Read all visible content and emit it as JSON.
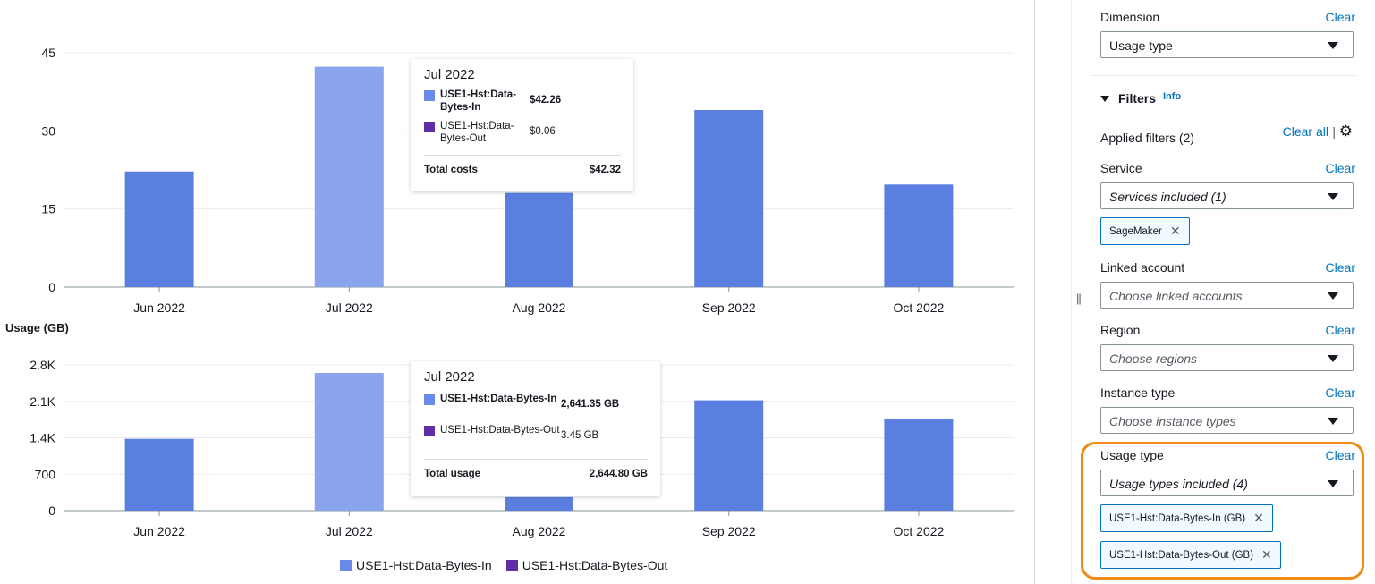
{
  "chart_data": [
    {
      "type": "bar",
      "categories": [
        "Jun 2022",
        "Jul 2022",
        "Aug 2022",
        "Sep 2022",
        "Oct 2022"
      ],
      "series": [
        {
          "values": [
            22.2,
            42.32,
            18.1,
            34.0,
            19.7
          ]
        }
      ],
      "ylim": [
        0,
        45
      ],
      "yticks": [
        "0",
        "15",
        "30",
        "45"
      ],
      "highlighted_category": "Jul 2022",
      "grid": true
    },
    {
      "type": "bar",
      "categories": [
        "Jun 2022",
        "Jul 2022",
        "Aug 2022",
        "Sep 2022",
        "Oct 2022"
      ],
      "series": [
        {
          "values": [
            1380,
            2644.8,
            260,
            2120,
            1770
          ]
        }
      ],
      "ylabel": "Usage (GB)",
      "ylim": [
        0,
        2800
      ],
      "yticks": [
        "0",
        "700",
        "1.4K",
        "2.1K",
        "2.8K"
      ],
      "highlighted_category": "Jul 2022",
      "grid": true
    }
  ],
  "colors": {
    "bar": "#5b7fe1",
    "bar_hover": "#8aa4ee",
    "series_in": "#688ae8",
    "series_out": "#5f2da4"
  },
  "tooltip_cost": {
    "title": "Jul 2022",
    "rows": [
      {
        "name": "USE1-Hst:Data-Bytes-In",
        "value": "$42.26"
      },
      {
        "name": "USE1-Hst:Data-Bytes-Out",
        "value": "$0.06"
      }
    ],
    "total_label": "Total costs",
    "total_value": "$42.32"
  },
  "tooltip_usage": {
    "title": "Jul 2022",
    "rows": [
      {
        "name": "USE1-Hst:Data-Bytes-In",
        "value": "2,641.35 GB"
      },
      {
        "name": "USE1-Hst:Data-Bytes-Out",
        "value": "3.45 GB"
      }
    ],
    "total_label": "Total usage",
    "total_value": "2,644.80 GB"
  },
  "legend": [
    "USE1-Hst:Data-Bytes-In",
    "USE1-Hst:Data-Bytes-Out"
  ],
  "panel": {
    "dimension_label": "Dimension",
    "dimension_value": "Usage type",
    "clear": "Clear",
    "filters_title": "Filters",
    "info": "Info",
    "applied": "Applied filters (2)",
    "clear_all": "Clear all",
    "service_label": "Service",
    "service_value": "Services included (1)",
    "service_token": "SageMaker",
    "linked_label": "Linked account",
    "linked_placeholder": "Choose linked accounts",
    "region_label": "Region",
    "region_placeholder": "Choose regions",
    "instance_label": "Instance type",
    "instance_placeholder": "Choose instance types",
    "usage_label": "Usage type",
    "usage_value": "Usage types included (4)",
    "usage_tokens": [
      "USE1-Hst:Data-Bytes-In (GB)",
      "USE1-Hst:Data-Bytes-Out (GB)"
    ]
  }
}
